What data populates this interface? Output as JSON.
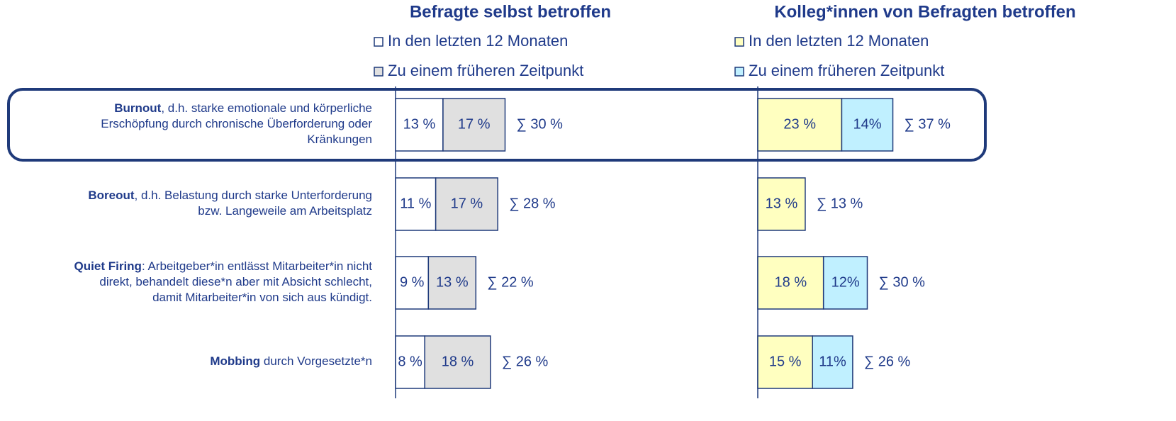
{
  "chart_data": [
    {
      "type": "bar",
      "orientation": "horizontal",
      "stacked": true,
      "title": "Befragte selbst betroffen",
      "categories": [
        {
          "term": "Burnout",
          "lines": [
            ", d.h. starke emotionale und körperliche",
            "Erschöpfung durch chronische Überforderung oder",
            "Kränkungen"
          ]
        },
        {
          "term": "Boreout",
          "lines": [
            ", d.h. Belastung durch starke Unterforderung",
            "bzw. Langeweile am Arbeitsplatz"
          ]
        },
        {
          "term": "Quiet Firing",
          "lines": [
            ": Arbeitgeber*in entlässt Mitarbeiter*in nicht",
            "direkt, behandelt diese*n aber mit Absicht schlecht,",
            "damit Mitarbeiter*in von sich aus kündigt."
          ]
        },
        {
          "term": "Mobbing",
          "lines": [
            " durch Vorgesetzte*n"
          ]
        }
      ],
      "series": [
        {
          "name": "In den letzten 12 Monaten",
          "color": "#ffffff",
          "values": [
            13,
            11,
            9,
            8
          ],
          "value_labels": [
            "13 %",
            "11 %",
            "9 %",
            "8 %"
          ]
        },
        {
          "name": "Zu einem früheren Zeitpunkt",
          "color": "#e0e0e0",
          "values": [
            17,
            17,
            13,
            18
          ],
          "value_labels": [
            "17 %",
            "17 %",
            "13 %",
            "18 %"
          ]
        }
      ],
      "totals": [
        30,
        28,
        22,
        26
      ],
      "total_labels": [
        "∑ 30 %",
        "∑ 28 %",
        "∑ 22 %",
        "∑ 26 %"
      ]
    },
    {
      "type": "bar",
      "orientation": "horizontal",
      "stacked": true,
      "title": "Kolleg*innen von Befragten betroffen",
      "series": [
        {
          "name": "In den letzten 12 Monaten",
          "color": "#ffffc0",
          "values": [
            23,
            13,
            18,
            15
          ],
          "value_labels": [
            "23 %",
            "13 %",
            "18 %",
            "15 %"
          ]
        },
        {
          "name": "Zu einem früheren Zeitpunkt",
          "color": "#c0f0ff",
          "values": [
            14,
            null,
            12,
            11
          ],
          "value_labels": [
            "14%",
            null,
            "12%",
            "11%"
          ]
        }
      ],
      "totals": [
        37,
        13,
        30,
        26
      ],
      "total_labels": [
        "∑ 37 %",
        "∑ 13 %",
        "∑ 30 %",
        "∑ 26 %"
      ]
    }
  ]
}
